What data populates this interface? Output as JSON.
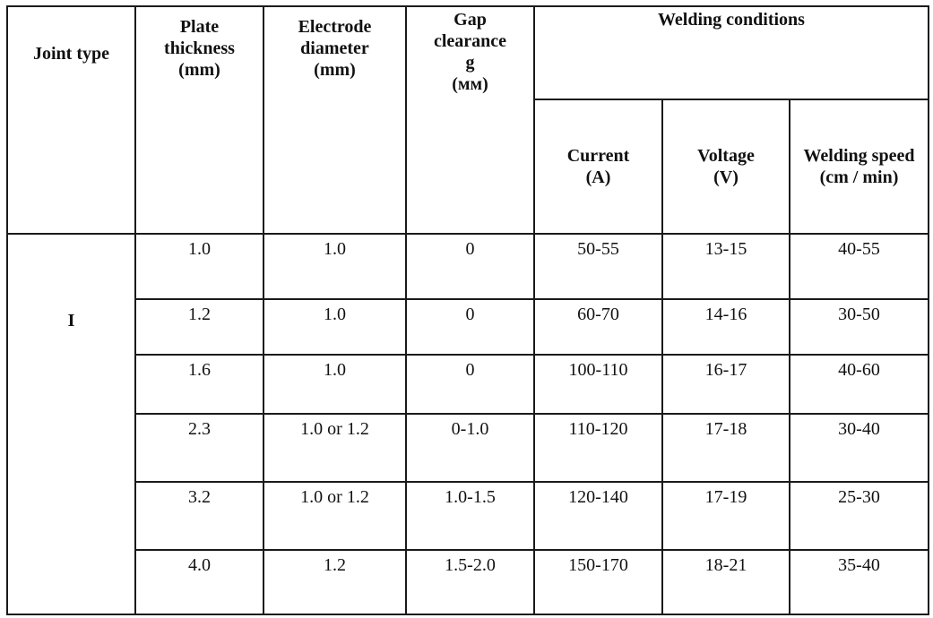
{
  "table": {
    "headers": {
      "joint_type": "Joint type",
      "plate_thickness": [
        "Plate",
        "thickness",
        "(mm)"
      ],
      "electrode_diameter": [
        "Electrode",
        "diameter",
        "(mm)"
      ],
      "gap_clearance": [
        "Gap",
        "clearance",
        "g",
        "(мм)"
      ],
      "welding_conditions": "Welding conditions",
      "current": [
        "Current",
        "(A)"
      ],
      "voltage": [
        "Voltage",
        "(V)"
      ],
      "welding_speed": [
        "Welding speed",
        "(cm / min)"
      ]
    },
    "joint_type_value": "I",
    "rows": [
      {
        "plate": "1.0",
        "electrode": "1.0",
        "gap": "0",
        "current": "50-55",
        "voltage": "13-15",
        "speed": "40-55"
      },
      {
        "plate": "1.2",
        "electrode": "1.0",
        "gap": "0",
        "current": "60-70",
        "voltage": "14-16",
        "speed": "30-50"
      },
      {
        "plate": "1.6",
        "electrode": "1.0",
        "gap": "0",
        "current": "100-110",
        "voltage": "16-17",
        "speed": "40-60"
      },
      {
        "plate": "2.3",
        "electrode": "1.0 or 1.2",
        "gap": "0-1.0",
        "current": "110-120",
        "voltage": "17-18",
        "speed": "30-40"
      },
      {
        "plate": "3.2",
        "electrode": "1.0 or 1.2",
        "gap": "1.0-1.5",
        "current": "120-140",
        "voltage": "17-19",
        "speed": "25-30"
      },
      {
        "plate": "4.0",
        "electrode": "1.2",
        "gap": "1.5-2.0",
        "current": "150-170",
        "voltage": "18-21",
        "speed": "35-40"
      }
    ]
  }
}
